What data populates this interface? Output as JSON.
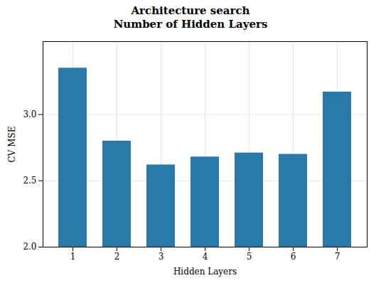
{
  "chart_data": {
    "type": "bar",
    "title": "Architecture search\nNumber of Hidden Layers",
    "xlabel": "Hidden Layers",
    "ylabel": "CV MSE",
    "categories": [
      1,
      2,
      3,
      4,
      5,
      6,
      7
    ],
    "values": [
      3.35,
      2.8,
      2.62,
      2.68,
      2.71,
      2.7,
      3.17
    ],
    "color": "#2878a8",
    "ylim": [
      2.0,
      3.55
    ],
    "yticks": [
      {
        "value": 2.0,
        "label": "2.0"
      },
      2.5,
      {
        "value": 3.0,
        "label": "3.0"
      }
    ],
    "grid": true
  }
}
